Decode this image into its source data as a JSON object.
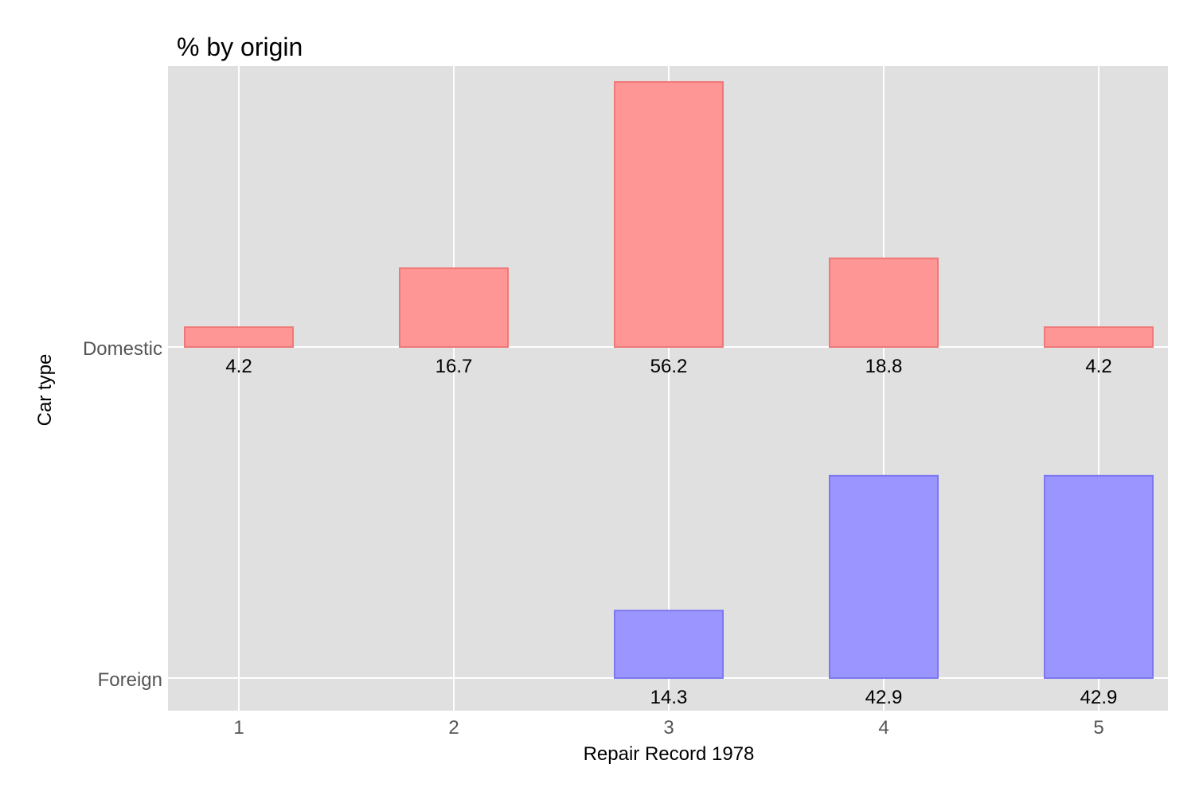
{
  "chart_data": {
    "type": "bar",
    "title": "% by origin",
    "xlabel": "Repair Record 1978",
    "ylabel": "Car type",
    "categories": [
      "1",
      "2",
      "3",
      "4",
      "5"
    ],
    "series": [
      {
        "name": "Domestic",
        "values": [
          4.2,
          16.7,
          56.2,
          18.8,
          4.2
        ],
        "color": "#ff9696",
        "stroke": "#f07878"
      },
      {
        "name": "Foreign",
        "values": [
          null,
          null,
          14.3,
          42.9,
          42.9
        ],
        "color": "#9b96ff",
        "stroke": "#7b78f0"
      }
    ],
    "ylim_per_panel": [
      0,
      56.2
    ],
    "grid": true,
    "panel_background": "#e0e0e0",
    "legend": "none"
  }
}
